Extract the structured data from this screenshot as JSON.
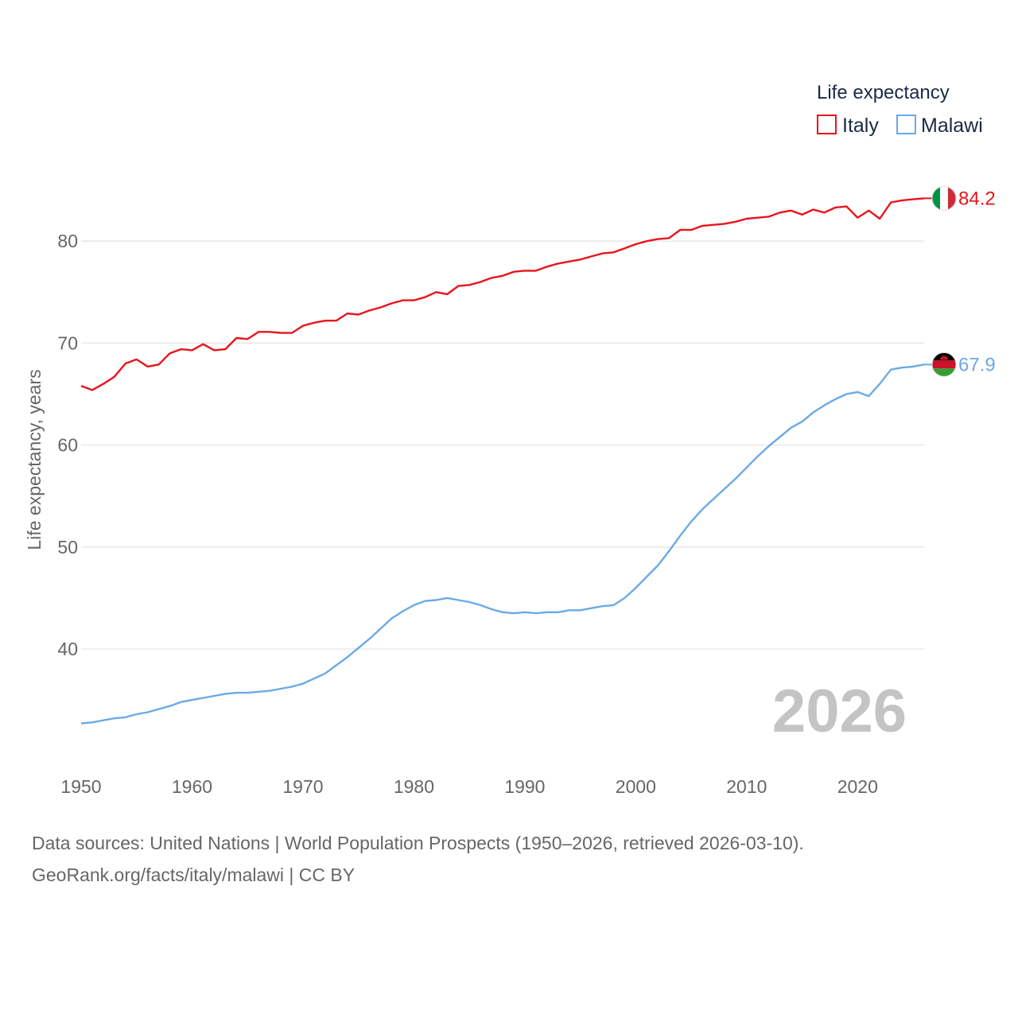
{
  "chart_data": {
    "type": "line",
    "title": "Life expectancy",
    "ylabel": "Life expectancy, years",
    "xlabel": "",
    "xlim": [
      1950,
      2026
    ],
    "ylim": [
      30,
      87
    ],
    "grid": true,
    "y_ticks": [
      40,
      50,
      60,
      70,
      80
    ],
    "x_ticks": [
      1950,
      1960,
      1970,
      1980,
      1990,
      2000,
      2010,
      2020
    ],
    "legend_position": "top-right",
    "x": [
      1950,
      1951,
      1952,
      1953,
      1954,
      1955,
      1956,
      1957,
      1958,
      1959,
      1960,
      1961,
      1962,
      1963,
      1964,
      1965,
      1966,
      1967,
      1968,
      1969,
      1970,
      1971,
      1972,
      1973,
      1974,
      1975,
      1976,
      1977,
      1978,
      1979,
      1980,
      1981,
      1982,
      1983,
      1984,
      1985,
      1986,
      1987,
      1988,
      1989,
      1990,
      1991,
      1992,
      1993,
      1994,
      1995,
      1996,
      1997,
      1998,
      1999,
      2000,
      2001,
      2002,
      2003,
      2004,
      2005,
      2006,
      2007,
      2008,
      2009,
      2010,
      2011,
      2012,
      2013,
      2014,
      2015,
      2016,
      2017,
      2018,
      2019,
      2020,
      2021,
      2022,
      2023,
      2024,
      2025,
      2026
    ],
    "series": [
      {
        "name": "Italy",
        "color": "#e8141b",
        "end_label": "84.2",
        "flag": "italy-flag",
        "values": [
          65.8,
          65.4,
          66.0,
          66.7,
          68.0,
          68.4,
          67.7,
          67.9,
          69.0,
          69.4,
          69.3,
          69.9,
          69.3,
          69.4,
          70.5,
          70.4,
          71.1,
          71.1,
          71.0,
          71.0,
          71.7,
          72.0,
          72.2,
          72.2,
          72.9,
          72.8,
          73.2,
          73.5,
          73.9,
          74.2,
          74.2,
          74.5,
          75.0,
          74.8,
          75.6,
          75.7,
          76.0,
          76.4,
          76.6,
          77.0,
          77.1,
          77.1,
          77.5,
          77.8,
          78.0,
          78.2,
          78.5,
          78.8,
          78.9,
          79.3,
          79.7,
          80.0,
          80.2,
          80.3,
          81.1,
          81.1,
          81.5,
          81.6,
          81.7,
          81.9,
          82.2,
          82.3,
          82.4,
          82.8,
          83.0,
          82.6,
          83.1,
          82.8,
          83.3,
          83.4,
          82.3,
          83.0,
          82.2,
          83.8,
          84.0,
          84.1,
          84.2
        ]
      },
      {
        "name": "Malawi",
        "color": "#6aaae6",
        "end_label": "67.9",
        "flag": "malawi-flag",
        "values": [
          32.7,
          32.8,
          33.0,
          33.2,
          33.3,
          33.6,
          33.8,
          34.1,
          34.4,
          34.8,
          35.0,
          35.2,
          35.4,
          35.6,
          35.7,
          35.7,
          35.8,
          35.9,
          36.1,
          36.3,
          36.6,
          37.1,
          37.6,
          38.4,
          39.2,
          40.1,
          41.0,
          42.0,
          43.0,
          43.7,
          44.3,
          44.7,
          44.8,
          45.0,
          44.8,
          44.6,
          44.3,
          43.9,
          43.6,
          43.5,
          43.6,
          43.5,
          43.6,
          43.6,
          43.8,
          43.8,
          44.0,
          44.2,
          44.3,
          45.0,
          46.0,
          47.1,
          48.2,
          49.6,
          51.1,
          52.5,
          53.7,
          54.7,
          55.7,
          56.7,
          57.8,
          58.9,
          59.9,
          60.8,
          61.7,
          62.3,
          63.2,
          63.9,
          64.5,
          65.0,
          65.2,
          64.8,
          66.0,
          67.4,
          67.6,
          67.7,
          67.9
        ]
      }
    ],
    "legend": {
      "title": "Life expectancy",
      "items": [
        {
          "label": "Italy",
          "color": "#e8141b"
        },
        {
          "label": "Malawi",
          "color": "#6aaae6"
        }
      ]
    },
    "year_display": "2026"
  },
  "footer": {
    "line1": "Data sources: United Nations | World Population Prospects (1950–2026, retrieved 2026-03-10).",
    "line2": "GeoRank.org/facts/italy/malawi | CC BY"
  }
}
